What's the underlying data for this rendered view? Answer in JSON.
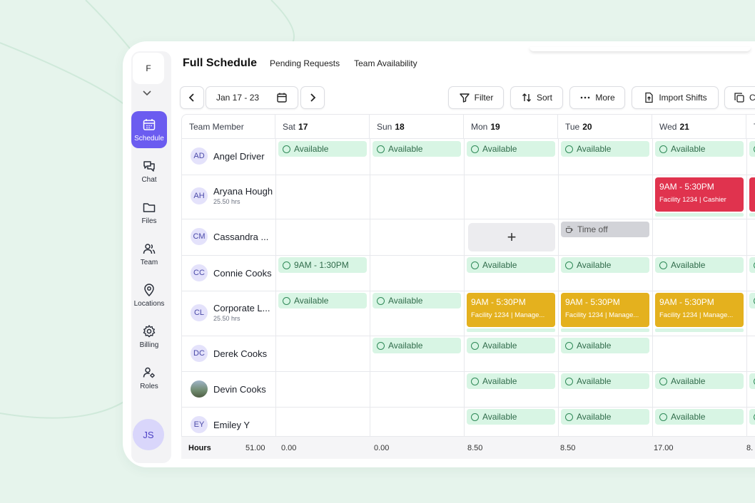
{
  "sidebar": {
    "workspace_letter": "F",
    "items": [
      {
        "label": "Schedule",
        "icon": "calendar-icon",
        "active": true
      },
      {
        "label": "Chat",
        "icon": "chat-icon"
      },
      {
        "label": "Files",
        "icon": "folder-icon"
      },
      {
        "label": "Team",
        "icon": "team-icon"
      },
      {
        "label": "Locations",
        "icon": "location-pin-icon"
      },
      {
        "label": "Billing",
        "icon": "gear-icon"
      },
      {
        "label": "Roles",
        "icon": "roles-icon"
      }
    ],
    "user_initials": "JS"
  },
  "header": {
    "tabs": [
      "Full Schedule",
      "Pending Requests",
      "Team Availability"
    ]
  },
  "toolbar": {
    "date_range": "Jan 17 - 23",
    "filter_label": "Filter",
    "sort_label": "Sort",
    "more_label": "More",
    "import_label": "Import Shifts",
    "copy_label": "C"
  },
  "grid": {
    "member_header": "Team Member",
    "days": [
      {
        "dow": "Sat",
        "num": "17"
      },
      {
        "dow": "Sun",
        "num": "18"
      },
      {
        "dow": "Mon",
        "num": "19"
      },
      {
        "dow": "Tue",
        "num": "20"
      },
      {
        "dow": "Wed",
        "num": "21"
      },
      {
        "dow": "T",
        "num": ""
      }
    ],
    "members": [
      {
        "initials": "AD",
        "name": "Angel Driver",
        "hours": ""
      },
      {
        "initials": "AH",
        "name": "Aryana Hough",
        "hours": "25.50 hrs"
      },
      {
        "initials": "CM",
        "name": "Cassandra ...",
        "hours": ""
      },
      {
        "initials": "CC",
        "name": "Connie Cooks",
        "hours": ""
      },
      {
        "initials": "CL",
        "name": "Corporate L...",
        "hours": "25.50 hrs"
      },
      {
        "initials": "DC",
        "name": "Derek Cooks",
        "hours": ""
      },
      {
        "initials": "",
        "name": "Devin Cooks",
        "hours": ""
      },
      {
        "initials": "EY",
        "name": "Emiley Y",
        "hours": ""
      }
    ],
    "available_label": "Available",
    "time_off_label": "Time off",
    "add_label": "+",
    "shift_red": {
      "time": "9AM - 5:30PM",
      "detail": "Facility 1234 | Cashier",
      "color": "#e0334e"
    },
    "shift_yellow": {
      "time": "9AM - 5:30PM",
      "detail": "Facility 1234 | Manage...",
      "color": "#e4b11e"
    },
    "connie_sat": "9AM - 1:30PM"
  },
  "footer": {
    "label": "Hours",
    "total": "51.00",
    "values": [
      "0.00",
      "0.00",
      "8.50",
      "8.50",
      "17.00",
      "8."
    ]
  },
  "colors": {
    "accent": "#6b5cf0",
    "available_bg": "#d8f5e4"
  }
}
